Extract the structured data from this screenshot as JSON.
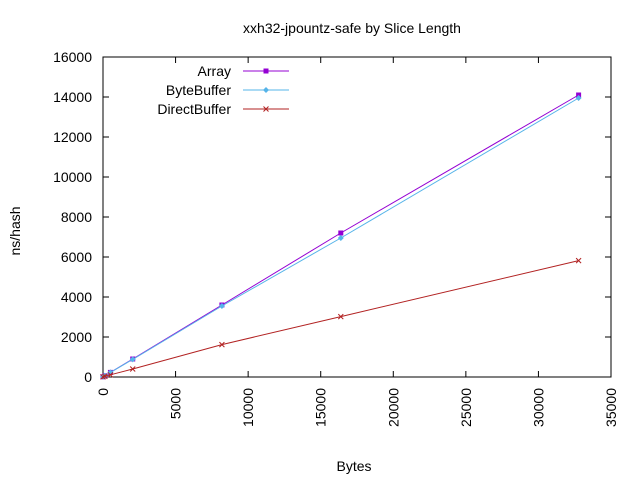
{
  "chart_data": {
    "type": "line",
    "title": "xxh32-jpountz-safe by Slice Length",
    "xlabel": "Bytes",
    "ylabel": "ns/hash",
    "xlim": [
      0,
      35000
    ],
    "ylim": [
      0,
      16000
    ],
    "xticks": [
      0,
      5000,
      10000,
      15000,
      20000,
      25000,
      30000,
      35000
    ],
    "yticks": [
      0,
      2000,
      4000,
      6000,
      8000,
      10000,
      12000,
      14000,
      16000
    ],
    "grid": false,
    "legend_position": "top-left",
    "series": [
      {
        "name": "Array",
        "color": "#9400d3",
        "marker": "square",
        "points": [
          [
            0,
            10
          ],
          [
            128,
            60
          ],
          [
            512,
            230
          ],
          [
            2048,
            900
          ],
          [
            8192,
            3600
          ],
          [
            16384,
            7200
          ],
          [
            32768,
            14100
          ]
        ]
      },
      {
        "name": "ByteBuffer",
        "color": "#56b4e9",
        "marker": "diamond",
        "points": [
          [
            0,
            10
          ],
          [
            128,
            60
          ],
          [
            512,
            230
          ],
          [
            2048,
            880
          ],
          [
            8192,
            3550
          ],
          [
            16384,
            6950
          ],
          [
            32768,
            13950
          ]
        ]
      },
      {
        "name": "DirectBuffer",
        "color": "#b22222",
        "marker": "cross",
        "points": [
          [
            0,
            10
          ],
          [
            128,
            30
          ],
          [
            512,
            110
          ],
          [
            2048,
            400
          ],
          [
            8192,
            1620
          ],
          [
            16384,
            3020
          ],
          [
            32768,
            5820
          ]
        ]
      }
    ]
  }
}
